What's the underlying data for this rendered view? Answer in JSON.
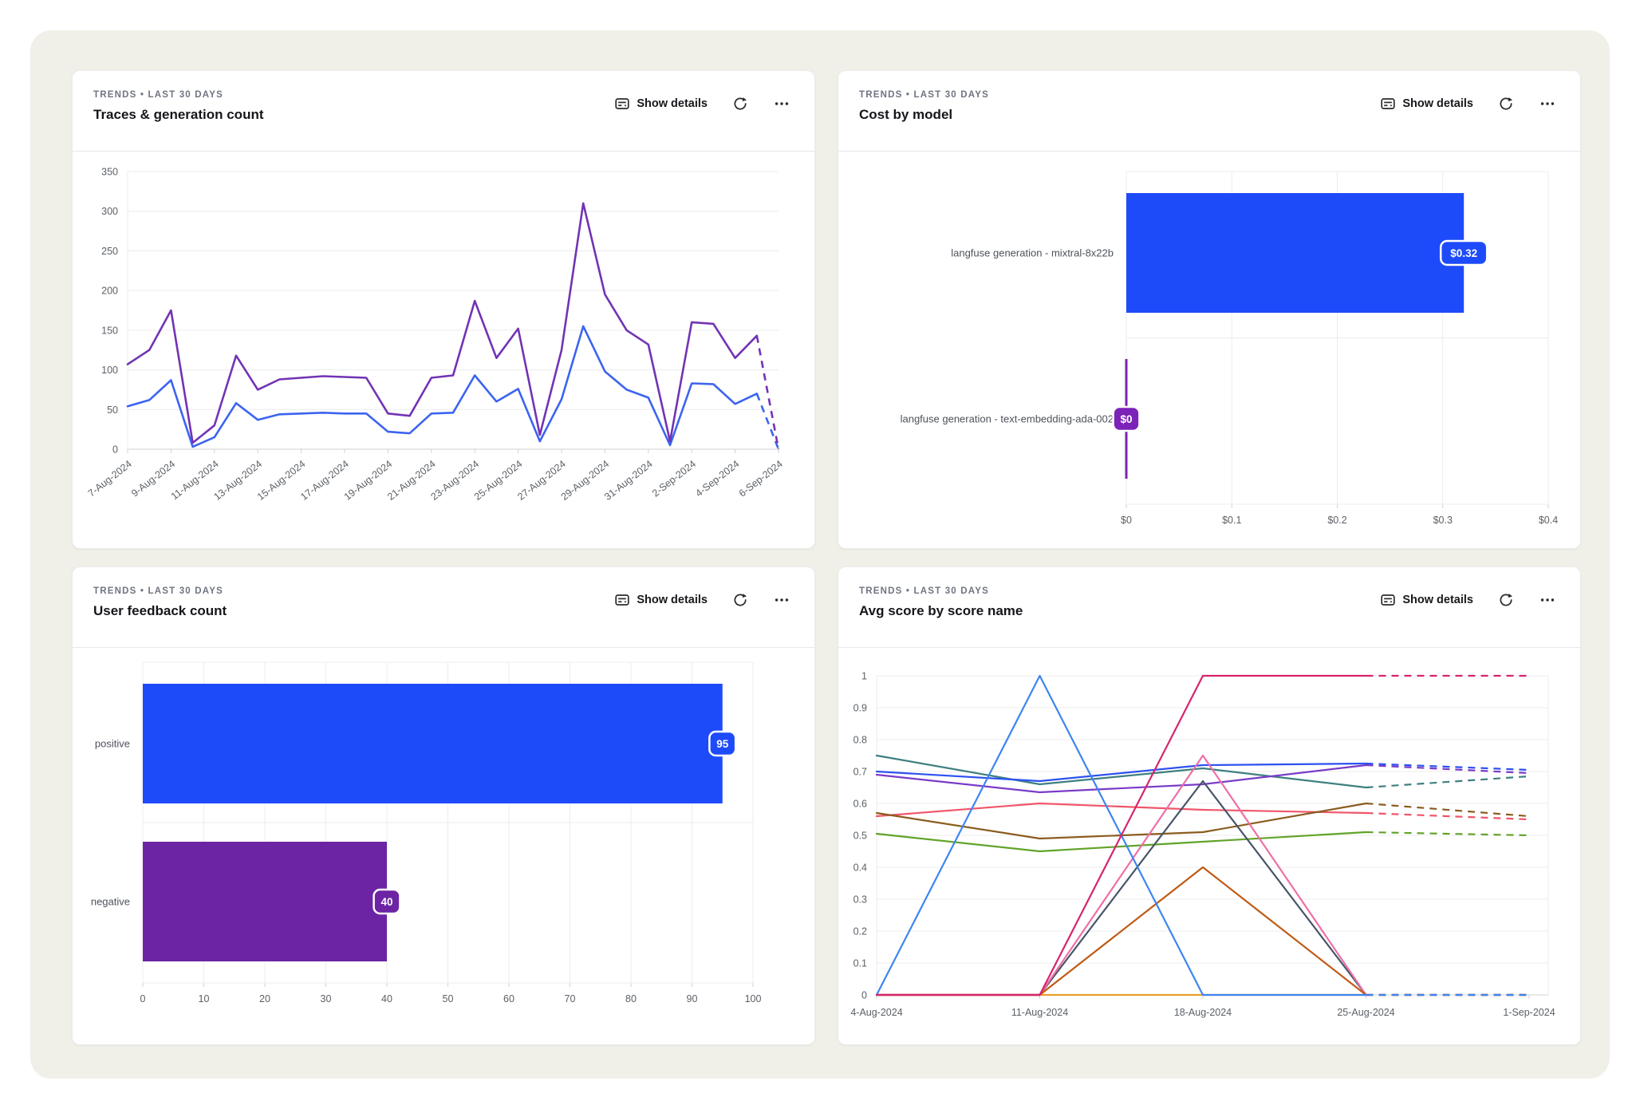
{
  "colors": {
    "page_bg": "#ffffff",
    "panel_bg": "#f0f0e9",
    "card_border": "#ebebeb",
    "accent_blue": "#1e4bfa",
    "accent_purple_badge": "#7c22b8",
    "accent_purple_bar": "#6c24a4",
    "line_purple": "#7233b4",
    "line_blue": "#3c64f0"
  },
  "icons": {
    "show_details": "card-text-icon",
    "refresh": "refresh-icon",
    "more": "ellipsis-icon"
  },
  "cards": [
    {
      "eyebrow": "TRENDS • LAST 30 DAYS",
      "title": "Traces & generation count",
      "show_details": "Show details"
    },
    {
      "eyebrow": "TRENDS • LAST 30 DAYS",
      "title": "Cost by model",
      "show_details": "Show details"
    },
    {
      "eyebrow": "TRENDS • LAST 30 DAYS",
      "title": "User feedback count",
      "show_details": "Show details"
    },
    {
      "eyebrow": "TRENDS • LAST 30 DAYS",
      "title": "Avg score by score name",
      "show_details": "Show details"
    }
  ],
  "chart_data": [
    {
      "type": "line",
      "title": "Traces & generation count",
      "x_tick_labels": [
        "7-Aug-2024",
        "9-Aug-2024",
        "11-Aug-2024",
        "13-Aug-2024",
        "15-Aug-2024",
        "17-Aug-2024",
        "19-Aug-2024",
        "21-Aug-2024",
        "23-Aug-2024",
        "25-Aug-2024",
        "27-Aug-2024",
        "29-Aug-2024",
        "31-Aug-2024",
        "2-Sep-2024",
        "4-Sep-2024",
        "6-Sep-2024"
      ],
      "ylim": [
        0,
        350
      ],
      "y_tick_labels": [
        "0",
        "50",
        "100",
        "150",
        "200",
        "250",
        "300",
        "350"
      ],
      "grid": "horizontal",
      "legend": "none",
      "dash_from_index": 29,
      "series": [
        {
          "name": "series-blue",
          "color": "#3c64f0",
          "values": [
            54,
            62,
            87,
            3,
            15,
            58,
            37,
            44,
            45,
            46,
            45,
            45,
            22,
            20,
            45,
            46,
            93,
            60,
            76,
            10,
            63,
            155,
            98,
            75,
            65,
            5,
            83,
            82,
            57,
            70,
            0
          ]
        },
        {
          "name": "series-purple",
          "color": "#7233b4",
          "values": [
            107,
            125,
            175,
            8,
            30,
            118,
            75,
            88,
            90,
            92,
            91,
            90,
            45,
            42,
            90,
            93,
            187,
            115,
            152,
            18,
            125,
            310,
            195,
            150,
            132,
            10,
            160,
            158,
            115,
            143,
            0
          ]
        }
      ]
    },
    {
      "type": "bar",
      "title": "Cost by model",
      "categories": [
        "langfuse generation - mixtral-8x22b",
        "langfuse generation - text-embedding-ada-002"
      ],
      "values": [
        0.32,
        0
      ],
      "value_labels": [
        "$0.32",
        "$0"
      ],
      "colors": [
        "#1e4bfa",
        "#7c22b8"
      ],
      "xlim": [
        0,
        0.4
      ],
      "x_tick_labels": [
        "$0",
        "$0.1",
        "$0.2",
        "$0.3",
        "$0.4"
      ]
    },
    {
      "type": "bar",
      "title": "User feedback count",
      "categories": [
        "positive",
        "negative"
      ],
      "values": [
        95,
        40
      ],
      "value_labels": [
        "95",
        "40"
      ],
      "colors": [
        "#1e4bfa",
        "#6c24a4"
      ],
      "xlim": [
        0,
        100
      ],
      "x_tick_labels": [
        "0",
        "10",
        "20",
        "30",
        "40",
        "50",
        "60",
        "70",
        "80",
        "90",
        "100"
      ]
    },
    {
      "type": "line",
      "title": "Avg score by score name",
      "x_tick_labels": [
        "4-Aug-2024",
        "11-Aug-2024",
        "18-Aug-2024",
        "25-Aug-2024",
        "1-Sep-2024"
      ],
      "ylim": [
        0,
        1
      ],
      "y_tick_labels": [
        "0",
        "0.1",
        "0.2",
        "0.3",
        "0.4",
        "0.5",
        "0.6",
        "0.7",
        "0.8",
        "0.9",
        "1"
      ],
      "grid": "horizontal",
      "legend": "none",
      "dash_from_index": 3,
      "series": [
        {
          "name": "score-teal",
          "color": "#3f7f80",
          "values": [
            0.75,
            0.66,
            0.71,
            0.65,
            0.685
          ]
        },
        {
          "name": "score-violet",
          "color": "#7a3bc8",
          "values": [
            0.69,
            0.635,
            0.66,
            0.72,
            0.695
          ]
        },
        {
          "name": "score-blue",
          "color": "#2d51f0",
          "values": [
            0.7,
            0.67,
            0.72,
            0.725,
            0.705
          ]
        },
        {
          "name": "score-salmon",
          "color": "#f0566a",
          "values": [
            0.56,
            0.6,
            0.58,
            0.57,
            0.55
          ]
        },
        {
          "name": "score-brown",
          "color": "#8a5c1e",
          "values": [
            0.57,
            0.49,
            0.51,
            0.6,
            0.56
          ]
        },
        {
          "name": "score-green",
          "color": "#62a32a",
          "values": [
            0.505,
            0.45,
            0.48,
            0.51,
            0.5
          ]
        },
        {
          "name": "score-amber",
          "color": "#e8a02c",
          "values": [
            0,
            0,
            0,
            0,
            0
          ]
        },
        {
          "name": "score-navy",
          "color": "#475569",
          "values": [
            0,
            0,
            0.67,
            0,
            0
          ]
        },
        {
          "name": "score-lightpink",
          "color": "#ee6fa5",
          "values": [
            0,
            0,
            0.75,
            0,
            0
          ]
        },
        {
          "name": "score-rust",
          "color": "#c05a15",
          "values": [
            0,
            0,
            0.4,
            0,
            0
          ]
        },
        {
          "name": "score-dodgerblue",
          "color": "#3d85f2",
          "values": [
            0,
            1,
            0,
            0,
            0
          ]
        },
        {
          "name": "score-magenta",
          "color": "#d6246e",
          "values": [
            0,
            0,
            1,
            1,
            1
          ]
        }
      ]
    }
  ]
}
